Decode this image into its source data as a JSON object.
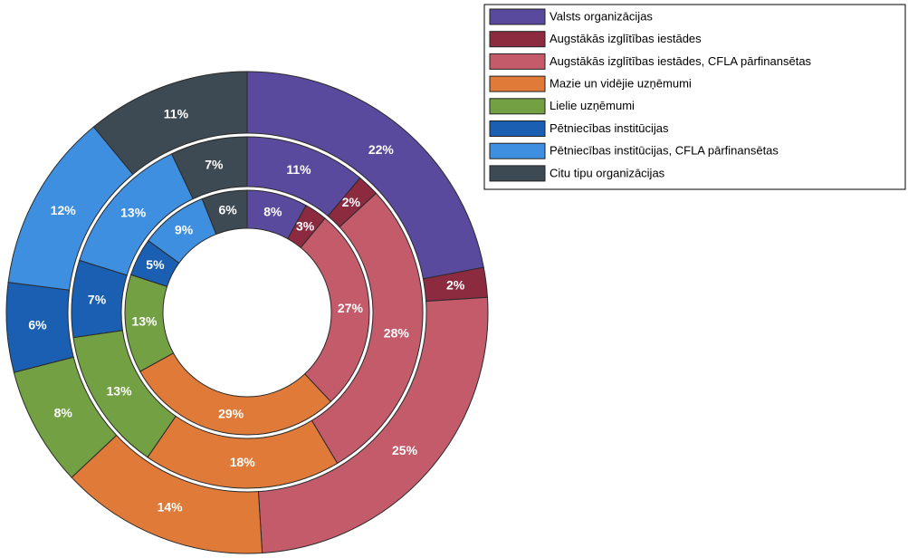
{
  "chart_data": {
    "type": "pie",
    "categories": [
      "Valsts organizācijas",
      "Augstākās izglītības iestādes",
      "Augstākās izglītības iestādes, CFLA pārfinansētas",
      "Mazie un vidējie uzņēmumi",
      "Lielie uzņēmumi",
      "Pētniecības institūcijas",
      "Pētniecības institūcijas, CFLA pārfinansētas",
      "Citu tipu organizācijas"
    ],
    "colors": [
      "#5a4a9e",
      "#8c2a40",
      "#c45b6b",
      "#df7a38",
      "#73a043",
      "#1b5fb3",
      "#3e8fe0",
      "#3d4953"
    ],
    "series": [
      {
        "values": [
          22,
          2,
          25,
          14,
          8,
          6,
          12,
          11
        ],
        "value_labels": [
          "22%",
          "2%",
          "25%",
          "14%",
          "8%",
          "6%",
          "12%",
          "11%"
        ]
      },
      {
        "values": [
          11,
          2,
          28,
          18,
          13,
          7,
          13,
          7
        ],
        "value_labels": [
          "11%",
          "2%",
          "28%",
          "18%",
          "13%",
          "7%",
          "13%",
          "7%"
        ]
      },
      {
        "values": [
          8,
          3,
          27,
          29,
          13,
          5,
          9,
          6
        ],
        "value_labels": [
          "8%",
          "3%",
          "27%",
          "29%",
          "13%",
          "5%",
          "9%",
          "6%"
        ]
      }
    ],
    "legend": "upper right"
  }
}
